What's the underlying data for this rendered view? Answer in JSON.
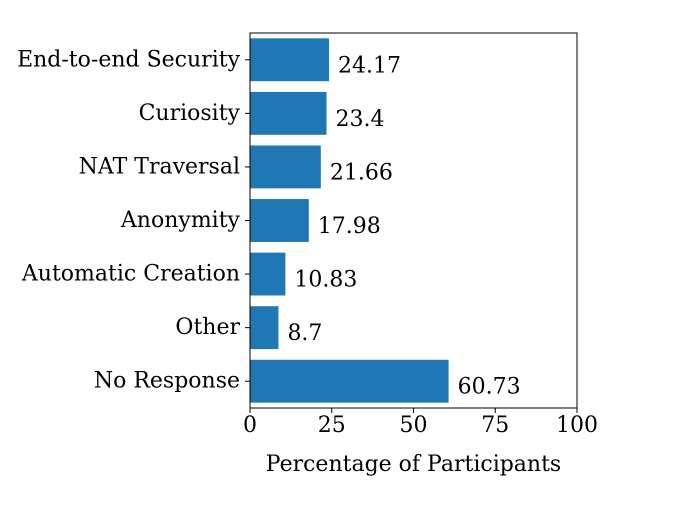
{
  "chart_data": {
    "type": "bar",
    "orientation": "horizontal",
    "categories": [
      "End-to-end Security",
      "Curiosity",
      "NAT Traversal",
      "Anonymity",
      "Automatic Creation",
      "Other",
      "No Response"
    ],
    "values": [
      24.17,
      23.4,
      21.66,
      17.98,
      10.83,
      8.7,
      60.73
    ],
    "value_labels": [
      "24.17",
      "23.4",
      "21.66",
      "17.98",
      "10.83",
      "8.7",
      "60.73"
    ],
    "xlabel": "Percentage of Participants",
    "ylabel": "",
    "xlim": [
      0,
      100
    ],
    "xticks": [
      0,
      25,
      50,
      75,
      100
    ],
    "xtick_labels": [
      "0",
      "25",
      "50",
      "75",
      "100"
    ],
    "grid": false,
    "bar_color": "#1f77b4"
  }
}
